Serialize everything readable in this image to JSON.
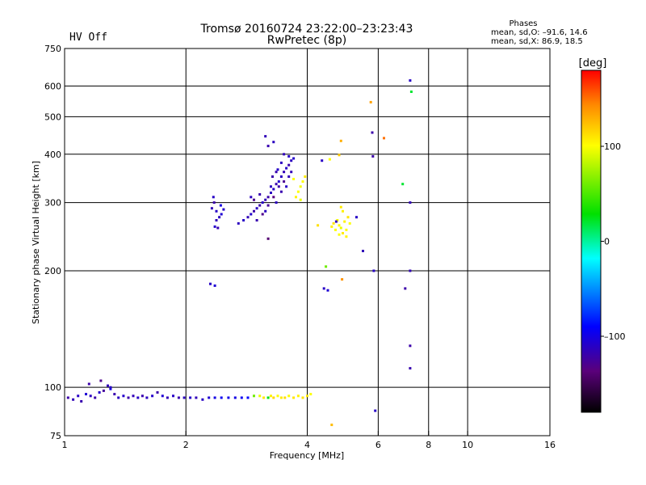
{
  "header": {
    "status": "HV Off",
    "status_color": "#cc0000",
    "title_line1": "Tromsø 20160724 23:22:00–23:23:43",
    "title_line2": "RwPretec (8p)",
    "stats_title": "Phases",
    "stats_o": "mean, sd,O: –91.6, 14.6",
    "stats_x": "mean, sd,X:  86.9, 18.5"
  },
  "chart_data": {
    "type": "scatter",
    "xlabel": "Frequency [MHz]",
    "ylabel": "Stationary phase Virtual Height [km]",
    "x_scale": "log2",
    "y_scale": "log",
    "xlim": [
      1,
      16
    ],
    "ylim": [
      75,
      750
    ],
    "x_ticks": [
      {
        "v": 1,
        "label": "1"
      },
      {
        "v": 2,
        "label": "2"
      },
      {
        "v": 4,
        "label": "4"
      },
      {
        "v": 6,
        "label": "6"
      },
      {
        "v": 8,
        "label": "8"
      },
      {
        "v": 10,
        "label": "10"
      },
      {
        "v": 16,
        "label": "16"
      }
    ],
    "y_ticks": [
      {
        "v": 75,
        "label": "75"
      },
      {
        "v": 100,
        "label": "100"
      },
      {
        "v": 200,
        "label": "200"
      },
      {
        "v": 300,
        "label": "300"
      },
      {
        "v": 400,
        "label": "400"
      },
      {
        "v": 500,
        "label": "500"
      },
      {
        "v": 600,
        "label": "600"
      },
      {
        "v": 750,
        "label": "750"
      }
    ],
    "grid": true,
    "colorbar": {
      "label": "[deg]",
      "min": -180,
      "max": 180,
      "ticks": [
        {
          "v": 100,
          "label": "100"
        },
        {
          "v": 0,
          "label": "0"
        },
        {
          "v": -100,
          "label": "–100"
        }
      ]
    },
    "points": [
      [
        1.02,
        94,
        -120
      ],
      [
        1.05,
        93,
        -115
      ],
      [
        1.08,
        95,
        -110
      ],
      [
        1.1,
        92,
        -118
      ],
      [
        1.13,
        96,
        -105
      ],
      [
        1.16,
        95,
        -112
      ],
      [
        1.19,
        94,
        -120
      ],
      [
        1.22,
        97,
        -108
      ],
      [
        1.25,
        98,
        -125
      ],
      [
        1.28,
        101,
        -115
      ],
      [
        1.3,
        99,
        -100
      ],
      [
        1.33,
        96,
        -118
      ],
      [
        1.36,
        94,
        -112
      ],
      [
        1.4,
        95,
        -108
      ],
      [
        1.44,
        94,
        -120
      ],
      [
        1.48,
        95,
        -115
      ],
      [
        1.52,
        94,
        -110
      ],
      [
        1.56,
        95,
        -118
      ],
      [
        1.6,
        94,
        -112
      ],
      [
        1.65,
        95,
        -108
      ],
      [
        1.7,
        97,
        -120
      ],
      [
        1.75,
        95,
        -105
      ],
      [
        1.8,
        94,
        -115
      ],
      [
        1.86,
        95,
        -110
      ],
      [
        1.92,
        94,
        -118
      ],
      [
        1.98,
        94,
        -112
      ],
      [
        2.05,
        94,
        -108
      ],
      [
        2.12,
        94,
        -115
      ],
      [
        2.2,
        93,
        -110
      ],
      [
        2.28,
        94,
        -105
      ],
      [
        2.36,
        94,
        -100
      ],
      [
        2.45,
        94,
        -95
      ],
      [
        2.55,
        94,
        -98
      ],
      [
        2.65,
        94,
        -100
      ],
      [
        2.75,
        94,
        -95
      ],
      [
        2.85,
        94,
        -90
      ],
      [
        2.95,
        95,
        60
      ],
      [
        3.05,
        95,
        95
      ],
      [
        3.12,
        94,
        110
      ],
      [
        3.2,
        94,
        25
      ],
      [
        3.25,
        95,
        105
      ],
      [
        3.3,
        94,
        115
      ],
      [
        3.38,
        95,
        100
      ],
      [
        3.45,
        94,
        108
      ],
      [
        3.52,
        94,
        112
      ],
      [
        3.6,
        95,
        100
      ],
      [
        3.7,
        94,
        110
      ],
      [
        3.8,
        95,
        105
      ],
      [
        3.9,
        94,
        112
      ],
      [
        4.0,
        95,
        108
      ],
      [
        4.08,
        96,
        100
      ],
      [
        1.15,
        102,
        -120
      ],
      [
        1.23,
        104,
        -130
      ],
      [
        1.3,
        100,
        -110
      ],
      [
        2.32,
        290,
        -115
      ],
      [
        2.35,
        300,
        -120
      ],
      [
        2.38,
        285,
        -110
      ],
      [
        2.42,
        275,
        -112
      ],
      [
        2.36,
        260,
        -108
      ],
      [
        2.4,
        258,
        -118
      ],
      [
        2.45,
        280,
        -105
      ],
      [
        2.34,
        310,
        -110
      ],
      [
        2.44,
        295,
        -100
      ],
      [
        2.38,
        270,
        -115
      ],
      [
        2.48,
        288,
        -108
      ],
      [
        2.3,
        185,
        -110
      ],
      [
        2.36,
        183,
        -105
      ],
      [
        2.7,
        265,
        -112
      ],
      [
        2.78,
        270,
        -110
      ],
      [
        2.85,
        275,
        -115
      ],
      [
        2.9,
        280,
        -108
      ],
      [
        2.95,
        285,
        -120
      ],
      [
        3.0,
        290,
        -112
      ],
      [
        3.05,
        295,
        -118
      ],
      [
        3.1,
        300,
        -110
      ],
      [
        3.15,
        305,
        -115
      ],
      [
        3.2,
        310,
        -120
      ],
      [
        3.25,
        318,
        -112
      ],
      [
        3.3,
        325,
        -110
      ],
      [
        3.35,
        335,
        -118
      ],
      [
        3.4,
        340,
        -108
      ],
      [
        3.45,
        350,
        -112
      ],
      [
        3.5,
        360,
        -115
      ],
      [
        3.55,
        368,
        -110
      ],
      [
        3.6,
        375,
        -118
      ],
      [
        3.65,
        385,
        -112
      ],
      [
        3.7,
        390,
        -108
      ],
      [
        3.1,
        280,
        -130
      ],
      [
        3.2,
        295,
        -125
      ],
      [
        3.3,
        310,
        -135
      ],
      [
        3.4,
        330,
        -120
      ],
      [
        3.5,
        340,
        -128
      ],
      [
        3.6,
        350,
        -115
      ],
      [
        3.35,
        300,
        -112
      ],
      [
        3.45,
        320,
        -118
      ],
      [
        3.55,
        330,
        -110
      ],
      [
        3.65,
        360,
        -115
      ],
      [
        3.25,
        330,
        -112
      ],
      [
        3.35,
        360,
        -118
      ],
      [
        3.45,
        380,
        -112
      ],
      [
        3.2,
        420,
        -118
      ],
      [
        3.3,
        430,
        -112
      ],
      [
        3.15,
        445,
        -115
      ],
      [
        3.28,
        350,
        -120
      ],
      [
        3.38,
        365,
        -110
      ],
      [
        2.9,
        310,
        -112
      ],
      [
        3.0,
        270,
        -118
      ],
      [
        3.5,
        400,
        -115
      ],
      [
        3.6,
        395,
        -110
      ],
      [
        3.2,
        242,
        -140
      ],
      [
        2.95,
        305,
        -130
      ],
      [
        3.15,
        285,
        -112
      ],
      [
        3.05,
        315,
        -118
      ],
      [
        3.75,
        310,
        105
      ],
      [
        3.8,
        320,
        100
      ],
      [
        3.85,
        330,
        98
      ],
      [
        3.9,
        340,
        102
      ],
      [
        3.95,
        350,
        108
      ],
      [
        3.85,
        305,
        95
      ],
      [
        3.7,
        345,
        100
      ],
      [
        4.35,
        385,
        -110
      ],
      [
        4.55,
        388,
        100
      ],
      [
        4.6,
        260,
        105
      ],
      [
        4.65,
        265,
        110
      ],
      [
        4.7,
        255,
        100
      ],
      [
        4.75,
        270,
        98
      ],
      [
        4.8,
        262,
        102
      ],
      [
        4.85,
        258,
        95
      ],
      [
        4.9,
        250,
        108
      ],
      [
        4.95,
        268,
        105
      ],
      [
        5.0,
        255,
        100
      ],
      [
        5.05,
        275,
        110
      ],
      [
        5.1,
        265,
        100
      ],
      [
        5.0,
        245,
        104
      ],
      [
        4.9,
        285,
        106
      ],
      [
        4.8,
        248,
        100
      ],
      [
        4.25,
        262,
        112
      ],
      [
        4.85,
        292,
        108
      ],
      [
        4.45,
        205,
        60
      ],
      [
        4.5,
        178,
        -105
      ],
      [
        4.72,
        268,
        -115
      ],
      [
        4.8,
        398,
        120
      ],
      [
        4.85,
        433,
        130
      ],
      [
        4.88,
        190,
        140
      ],
      [
        4.4,
        180,
        -110
      ],
      [
        4.6,
        80,
        125
      ],
      [
        5.3,
        275,
        -110
      ],
      [
        5.5,
        225,
        -115
      ],
      [
        5.75,
        545,
        135
      ],
      [
        5.8,
        455,
        -120
      ],
      [
        5.82,
        395,
        -120
      ],
      [
        5.85,
        200,
        -110
      ],
      [
        5.9,
        87,
        -110
      ],
      [
        6.2,
        440,
        150
      ],
      [
        6.9,
        335,
        20
      ],
      [
        7.0,
        180,
        -120
      ],
      [
        7.2,
        620,
        -110
      ],
      [
        7.25,
        580,
        20
      ],
      [
        7.2,
        300,
        -115
      ],
      [
        7.2,
        200,
        -115
      ],
      [
        7.2,
        128,
        -120
      ],
      [
        7.2,
        112,
        -118
      ]
    ]
  }
}
